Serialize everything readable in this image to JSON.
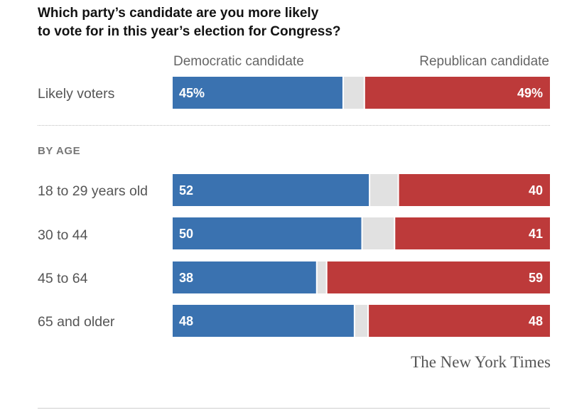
{
  "chart_data": {
    "type": "bar",
    "stacked": true,
    "orientation": "horizontal",
    "title": [
      "Which party’s candidate are you more likely",
      "to vote for in this year’s election for Congress?"
    ],
    "legend": [
      "Democratic candidate",
      "Republican candidate"
    ],
    "section_label": "BY AGE",
    "source": "The New York Times",
    "colors": {
      "democratic": "#3a72b0",
      "other": "#e1e1e1",
      "republican": "#bd3a3a"
    },
    "rows": [
      {
        "category": "Likely voters",
        "dem": 45,
        "rep": 49,
        "dem_label": "45%",
        "rep_label": "49%"
      },
      {
        "category": "18 to 29 years old",
        "dem": 52,
        "rep": 40,
        "dem_label": "52",
        "rep_label": "40"
      },
      {
        "category": "30 to 44",
        "dem": 50,
        "rep": 41,
        "dem_label": "50",
        "rep_label": "41"
      },
      {
        "category": "45 to 64",
        "dem": 38,
        "rep": 59,
        "dem_label": "38",
        "rep_label": "59"
      },
      {
        "category": "65 and older",
        "dem": 48,
        "rep": 48,
        "dem_label": "48",
        "rep_label": "48"
      }
    ],
    "xlim": [
      0,
      100
    ]
  }
}
